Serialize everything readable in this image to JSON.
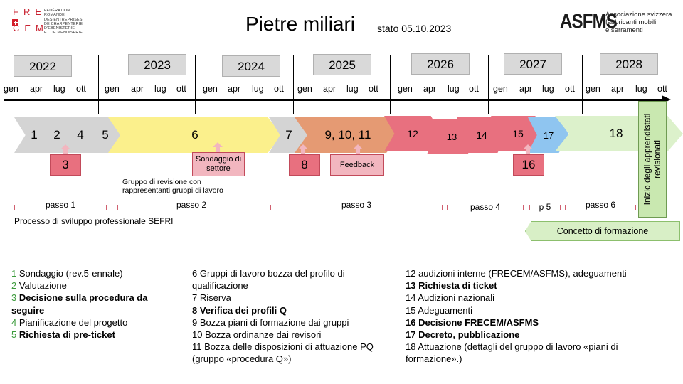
{
  "header": {
    "title": "Pietre miliari",
    "status": "stato 05.10.2023",
    "frecem_letters": [
      "FRE",
      "CEM"
    ],
    "frecem_text": [
      "Fédération",
      "Romande",
      "des entreprises",
      "de charpenterie",
      "d'ébénisterie",
      "et de menuiserie"
    ],
    "asfms_word": "ASFMS",
    "asfms_text": [
      "Associazione svizzera",
      "fabbricanti mobili",
      "e serramenti"
    ]
  },
  "timeline": {
    "years": [
      "2022",
      "2023",
      "2024",
      "2025",
      "2026",
      "2027",
      "2028"
    ],
    "months": [
      "gen",
      "apr",
      "lug",
      "ott"
    ]
  },
  "phases": {
    "grey": [
      "1",
      "2",
      "4",
      "5"
    ],
    "main6": "6",
    "grey7": "7",
    "orange": "9, 10, 11",
    "red": [
      "12",
      "13",
      "14",
      "15"
    ],
    "blue": "17",
    "green": "18"
  },
  "callouts": {
    "c3": "3",
    "survey": "Sondaggio di settore",
    "c8": "8",
    "feedback": "Feedback",
    "c16": "16"
  },
  "notes": {
    "revision_group": "Gruppo di revisione con rappresentanti gruppi di lavoro",
    "process": "Processo di sviluppo professionale SEFRI",
    "concept": "Concetto di formazione",
    "vertical": "Inizio  degli apprendistati revisionati"
  },
  "steps": [
    "passo 1",
    "passo 2",
    "passo 3",
    "passo 4",
    "p 5",
    "passo 6"
  ],
  "colors": {
    "grey": "#d4d4d4",
    "yellow": "#fbf08c",
    "orange": "#e59a73",
    "red": "#e8707f",
    "blue": "#8fc5f0",
    "green": "#d8efc6"
  },
  "legend": {
    "col1": [
      {
        "num": "1",
        "text": " Sondaggio (rev.5-ennale)",
        "bold": false
      },
      {
        "num": "2",
        "text": " Valutazione",
        "bold": false
      },
      {
        "num": "3",
        "text": " Decisione sulla procedura da",
        "bold": true
      },
      {
        "num": "",
        "text": "seguire",
        "bold": true
      },
      {
        "num": "4",
        "text": " Pianificazione del progetto",
        "bold": false
      },
      {
        "num": "5",
        "text": " Richiesta di pre-ticket",
        "bold": true
      }
    ],
    "col2": [
      {
        "text": "6 Gruppi di lavoro bozza del profilo di",
        "bold": false
      },
      {
        "text": "qualificazione",
        "bold": false
      },
      {
        "text": "7 Riserva",
        "bold": false
      },
      {
        "text": "8 Verifica dei profili Q",
        "bold": true
      },
      {
        "text": "9 Bozza piani di formazione dai gruppi",
        "bold": false
      },
      {
        "text": "10 Bozza ordinanze dai revisori",
        "bold": false
      },
      {
        "text": "11 Bozza delle disposizioni di attuazione PQ",
        "bold": false
      },
      {
        "text": "(gruppo «procedura Q»)",
        "bold": false
      }
    ],
    "col3": [
      {
        "text": "12 audizioni interne (FRECEM/ASFMS), adeguamenti",
        "bold": false
      },
      {
        "text": "13 Richiesta di ticket",
        "bold": true
      },
      {
        "text": "14 Audizioni nazionali",
        "bold": false
      },
      {
        "text": "15 Adeguamenti",
        "bold": false
      },
      {
        "text": "16 Decisione FRECEM/ASFMS",
        "bold": true
      },
      {
        "text": "17 Decreto, pubblicazione",
        "bold": true
      },
      {
        "text": "18 Attuazione (dettagli del gruppo di lavoro «piani di",
        "bold": false
      },
      {
        "text": "formazione».)",
        "bold": false
      }
    ]
  }
}
